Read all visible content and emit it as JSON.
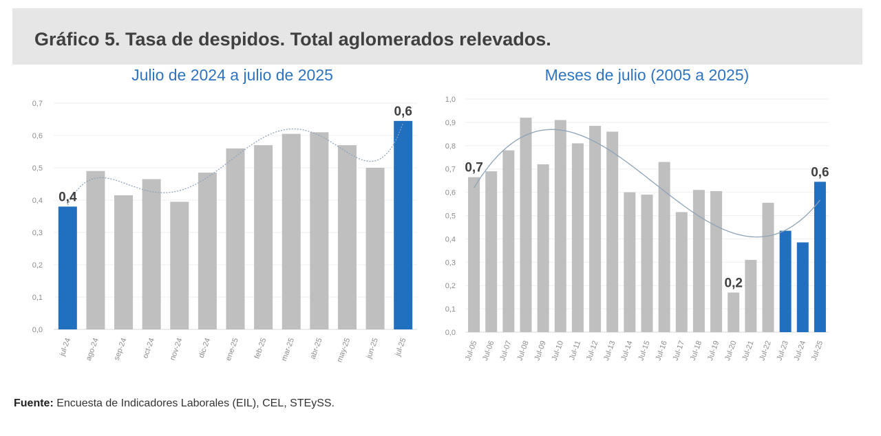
{
  "title": "Gráfico 5. Tasa de despidos. Total aglomerados relevados.",
  "source": {
    "label": "Fuente:",
    "text": " Encuesta de Indicadores Laborales (EIL), CEL, STEySS."
  },
  "colors": {
    "highlight": "#2170c0",
    "bar": "#bfbfbf",
    "trend": "#8fa3b8",
    "subtitle": "#2e74c0"
  },
  "chart_data": [
    {
      "type": "bar",
      "title": "Julio de 2024 a julio de 2025",
      "categories": [
        "jul-24",
        "ago-24",
        "sep-24",
        "oct-24",
        "nov-24",
        "dic-24",
        "ene-25",
        "feb-25",
        "mar-25",
        "abr-25",
        "may-25",
        "jun-25",
        "jul-25"
      ],
      "values": [
        0.38,
        0.49,
        0.415,
        0.465,
        0.395,
        0.485,
        0.56,
        0.57,
        0.605,
        0.61,
        0.57,
        0.5,
        0.645
      ],
      "highlighted": [
        "jul-24",
        "jul-25"
      ],
      "data_labels": [
        {
          "category": "jul-24",
          "text": "0,4"
        },
        {
          "category": "jul-25",
          "text": "0,6"
        }
      ],
      "ylim": [
        0,
        0.7
      ],
      "yticks": [
        "0,0",
        "0,1",
        "0,2",
        "0,3",
        "0,4",
        "0,5",
        "0,6",
        "0,7"
      ],
      "trendline": "polynomial, dotted",
      "grid": true
    },
    {
      "type": "bar",
      "title": "Meses de julio (2005 a 2025)",
      "categories": [
        "Jul-05",
        "Jul-06",
        "Jul-07",
        "Jul-08",
        "Jul-09",
        "Jul-10",
        "Jul-11",
        "Jul-12",
        "Jul-13",
        "Jul-14",
        "Jul-15",
        "Jul-16",
        "Jul-17",
        "Jul-18",
        "Jul-19",
        "Jul-20",
        "Jul-21",
        "Jul-22",
        "Jul-23",
        "Jul-24",
        "Jul-25"
      ],
      "values": [
        0.665,
        0.69,
        0.78,
        0.92,
        0.72,
        0.91,
        0.81,
        0.885,
        0.86,
        0.6,
        0.59,
        0.73,
        0.515,
        0.61,
        0.605,
        0.17,
        0.31,
        0.555,
        0.435,
        0.385,
        0.645
      ],
      "highlighted": [
        "Jul-23",
        "Jul-24",
        "Jul-25"
      ],
      "data_labels": [
        {
          "category": "Jul-05",
          "text": "0,7"
        },
        {
          "category": "Jul-20",
          "text": "0,2"
        },
        {
          "category": "Jul-25",
          "text": "0,6"
        }
      ],
      "ylim": [
        0,
        1.0
      ],
      "yticks": [
        "0,0",
        "0,1",
        "0,2",
        "0,3",
        "0,4",
        "0,5",
        "0,6",
        "0,7",
        "0,8",
        "0,9",
        "1,0"
      ],
      "trendline": "polynomial",
      "grid": true
    }
  ]
}
